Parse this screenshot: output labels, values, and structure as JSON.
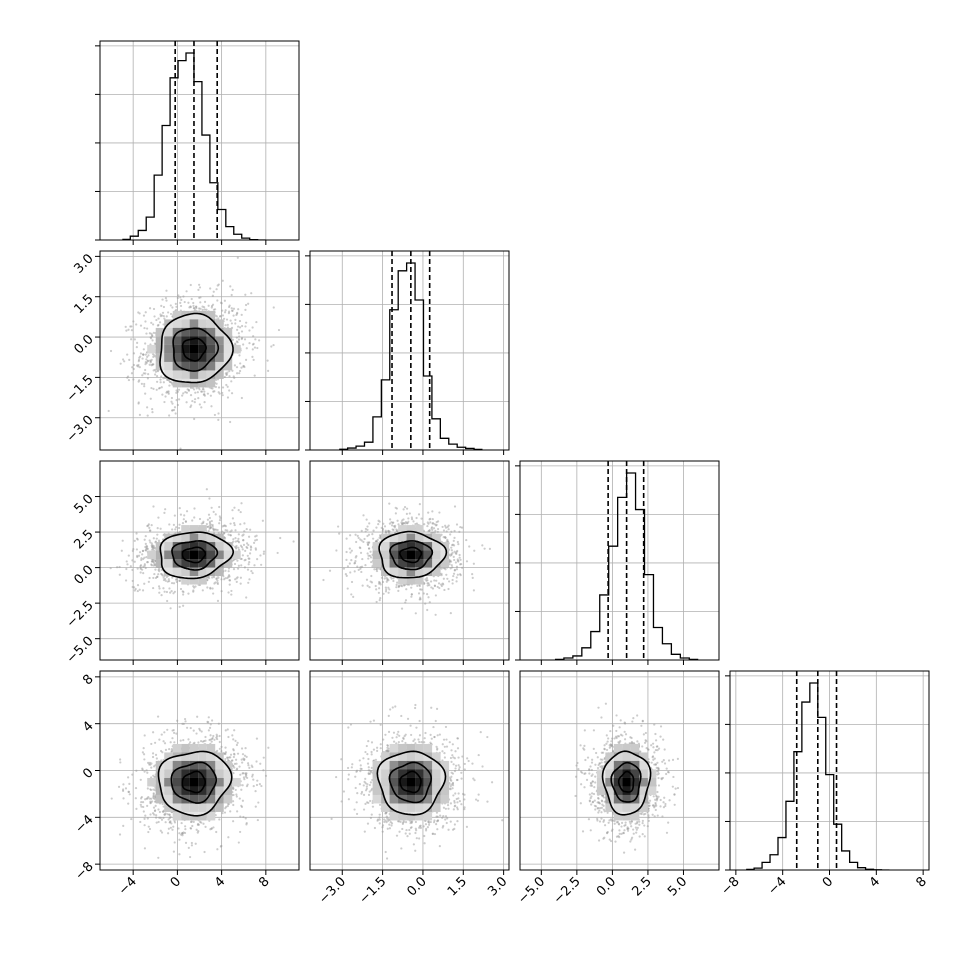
{
  "chart_data": {
    "type": "corner",
    "grid": true,
    "quantile_lines": "dashed",
    "params": [
      {
        "hist_range": [
          -7,
          11
        ],
        "ticks": [
          -4,
          0,
          4,
          8
        ],
        "tick_labels": [
          "−4",
          "0",
          "4",
          "8"
        ],
        "quantiles": [
          -0.2,
          1.5,
          3.6
        ],
        "hist_values": [
          0.003,
          0.02,
          0.05,
          0.12,
          0.34,
          0.6,
          0.85,
          0.94,
          0.98,
          0.83,
          0.55,
          0.3,
          0.16,
          0.07,
          0.03,
          0.01,
          0.002,
          0.0
        ]
      },
      {
        "hist_range": [
          -4.2,
          3.2
        ],
        "ticks": [
          -3.0,
          -1.5,
          0.0,
          1.5,
          3.0
        ],
        "tick_labels": [
          "−3.0",
          "−1.5",
          "0.0",
          "1.5",
          "3.0"
        ],
        "quantiles": [
          -1.15,
          -0.45,
          0.25
        ],
        "hist_values": [
          0.004,
          0.01,
          0.02,
          0.04,
          0.17,
          0.36,
          0.72,
          0.92,
          0.96,
          0.77,
          0.38,
          0.16,
          0.06,
          0.03,
          0.014,
          0.008,
          0.003
        ]
      },
      {
        "hist_range": [
          -6.5,
          7.5
        ],
        "ticks": [
          -5.0,
          -2.5,
          0.0,
          2.5,
          5.0
        ],
        "tick_labels": [
          "−5.0",
          "−2.5",
          "0.0",
          "2.5",
          "5.0"
        ],
        "quantiles": [
          -0.3,
          1.0,
          2.2
        ],
        "hist_values": [
          0.003,
          0.01,
          0.02,
          0.06,
          0.14,
          0.32,
          0.56,
          0.8,
          0.92,
          0.74,
          0.42,
          0.16,
          0.08,
          0.028,
          0.01,
          0.003
        ]
      },
      {
        "hist_range": [
          -8.5,
          8.5
        ],
        "ticks": [
          -8,
          -4,
          0,
          4,
          8
        ],
        "tick_labels": [
          "−8",
          "−4",
          "0",
          "4",
          "8"
        ],
        "quantiles": [
          -2.8,
          -1.0,
          0.6
        ],
        "hist_values": [
          0.003,
          0.01,
          0.04,
          0.08,
          0.17,
          0.36,
          0.62,
          0.88,
          0.98,
          0.8,
          0.5,
          0.24,
          0.1,
          0.04,
          0.012,
          0.004,
          0.001,
          0.0
        ]
      }
    ],
    "pairs": [
      {
        "row": 1,
        "col": 0,
        "center": [
          1.5,
          -0.45
        ],
        "spread": [
          2.4,
          0.95
        ],
        "corr": 0.1,
        "contour_levels": [
          0.5,
          1.0,
          1.5
        ]
      },
      {
        "row": 2,
        "col": 0,
        "center": [
          1.5,
          0.9
        ],
        "spread": [
          2.4,
          1.2
        ],
        "corr": 0.15,
        "contour_levels": [
          0.5,
          1.0,
          1.5
        ]
      },
      {
        "row": 2,
        "col": 1,
        "center": [
          -0.45,
          0.9
        ],
        "spread": [
          0.9,
          1.2
        ],
        "corr": 0.0,
        "contour_levels": [
          0.5,
          1.0,
          1.5
        ]
      },
      {
        "row": 3,
        "col": 0,
        "center": [
          1.5,
          -1.0
        ],
        "spread": [
          2.4,
          2.0
        ],
        "corr": 0.15,
        "contour_levels": [
          0.5,
          1.0,
          1.5
        ]
      },
      {
        "row": 3,
        "col": 1,
        "center": [
          -0.45,
          -1.0
        ],
        "spread": [
          0.9,
          2.0
        ],
        "corr": 0.0,
        "contour_levels": [
          0.5,
          1.0,
          1.5
        ]
      },
      {
        "row": 3,
        "col": 2,
        "center": [
          1.0,
          -1.0
        ],
        "spread": [
          1.2,
          2.0
        ],
        "corr": 0.05,
        "contour_levels": [
          0.5,
          1.0,
          1.5
        ]
      }
    ]
  }
}
